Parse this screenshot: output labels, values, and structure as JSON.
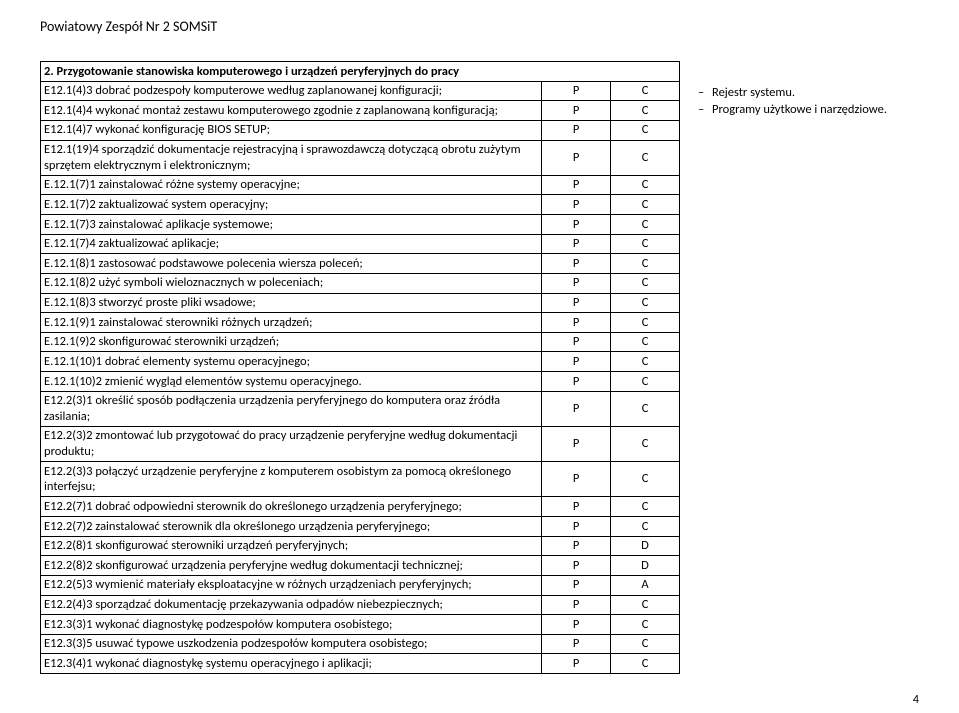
{
  "header": "Powiatowy Zespół Nr 2 SOMSiT",
  "section_title": "2. Przygotowanie stanowiska komputerowego i urządzeń peryferyjnych do pracy",
  "side_notes": [
    "Rejestr systemu.",
    "Programy użytkowe i narzędziowe."
  ],
  "page_number": "4",
  "col_widths": {
    "desc": 480,
    "p": 60,
    "c": 60
  },
  "colors": {
    "border": "#000000",
    "bg": "#ffffff",
    "text": "#000000"
  },
  "p_default": "P",
  "c_default": "C",
  "rows": [
    {
      "desc": "E12.1(4)3 dobrać podzespoły komputerowe według zaplanowanej konfiguracji;",
      "p": "P",
      "c": "C"
    },
    {
      "desc": "E12.1(4)4 wykonać montaż zestawu komputerowego zgodnie z zaplanowaną konfiguracją;",
      "p": "P",
      "c": "C"
    },
    {
      "desc": "E12.1(4)7 wykonać konfigurację BIOS SETUP;",
      "p": "P",
      "c": "C"
    },
    {
      "desc": "E12.1(19)4 sporządzić dokumentacje rejestracyjną i sprawozdawczą dotyczącą obrotu zużytym sprzętem elektrycznym i elektronicznym;",
      "p": "P",
      "c": "C"
    },
    {
      "desc": "E.12.1(7)1 zainstalować różne systemy operacyjne;",
      "p": "P",
      "c": "C"
    },
    {
      "desc": "E.12.1(7)2 zaktualizować system operacyjny;",
      "p": "P",
      "c": "C"
    },
    {
      "desc": "E.12.1(7)3 zainstalować aplikacje systemowe;",
      "p": "P",
      "c": "C"
    },
    {
      "desc": "E.12.1(7)4 zaktualizować aplikacje;",
      "p": "P",
      "c": "C"
    },
    {
      "desc": "E.12.1(8)1 zastosować podstawowe polecenia wiersza poleceń;",
      "p": "P",
      "c": "C"
    },
    {
      "desc": "E.12.1(8)2 użyć symboli wieloznacznych w poleceniach;",
      "p": "P",
      "c": "C"
    },
    {
      "desc": "E.12.1(8)3 stworzyć proste pliki wsadowe;",
      "p": "P",
      "c": "C"
    },
    {
      "desc": "E.12.1(9)1 zainstalować sterowniki różnych urządzeń;",
      "p": "P",
      "c": "C"
    },
    {
      "desc": "E.12.1(9)2 skonfigurować sterowniki urządzeń;",
      "p": "P",
      "c": "C"
    },
    {
      "desc": "E.12.1(10)1 dobrać elementy systemu operacyjnego;",
      "p": "P",
      "c": "C"
    },
    {
      "desc": "E.12.1(10)2 zmienić wygląd elementów systemu operacyjnego.",
      "p": "P",
      "c": "C"
    },
    {
      "desc": "E12.2(3)1 określić sposób podłączenia urządzenia peryferyjnego do komputera oraz źródła zasilania;",
      "p": "P",
      "c": "C"
    },
    {
      "desc": "E12.2(3)2 zmontować lub przygotować do pracy urządzenie peryferyjne według dokumentacji produktu;",
      "p": "P",
      "c": "C"
    },
    {
      "desc": "E12.2(3)3 połączyć urządzenie peryferyjne z komputerem osobistym za pomocą określonego interfejsu;",
      "p": "P",
      "c": "C"
    },
    {
      "desc": "E12.2(7)1 dobrać odpowiedni sterownik do określonego urządzenia peryferyjnego;",
      "p": "P",
      "c": "C"
    },
    {
      "desc": "E12.2(7)2 zainstalować sterownik dla określonego urządzenia peryferyjnego;",
      "p": "P",
      "c": "C"
    },
    {
      "desc": "E12.2(8)1 skonfigurować sterowniki urządzeń peryferyjnych;",
      "p": "P",
      "c": "D"
    },
    {
      "desc": "E12.2(8)2 skonfigurować urządzenia peryferyjne według dokumentacji technicznej;",
      "p": "P",
      "c": "D"
    },
    {
      "desc": "E12.2(5)3 wymienić materiały eksploatacyjne w różnych urządzeniach peryferyjnych;",
      "p": "P",
      "c": "A"
    },
    {
      "desc": "E12.2(4)3 sporządzać dokumentację przekazywania odpadów niebezpiecznych;",
      "p": "P",
      "c": "C"
    },
    {
      "desc": "E12.3(3)1 wykonać diagnostykę podzespołów komputera osobistego;",
      "p": "P",
      "c": "C"
    },
    {
      "desc": "E12.3(3)5 usuwać typowe uszkodzenia podzespołów komputera osobistego;",
      "p": "P",
      "c": "C"
    },
    {
      "desc": "E12.3(4)1 wykonać diagnostykę systemu operacyjnego i aplikacji;",
      "p": "P",
      "c": "C"
    }
  ]
}
